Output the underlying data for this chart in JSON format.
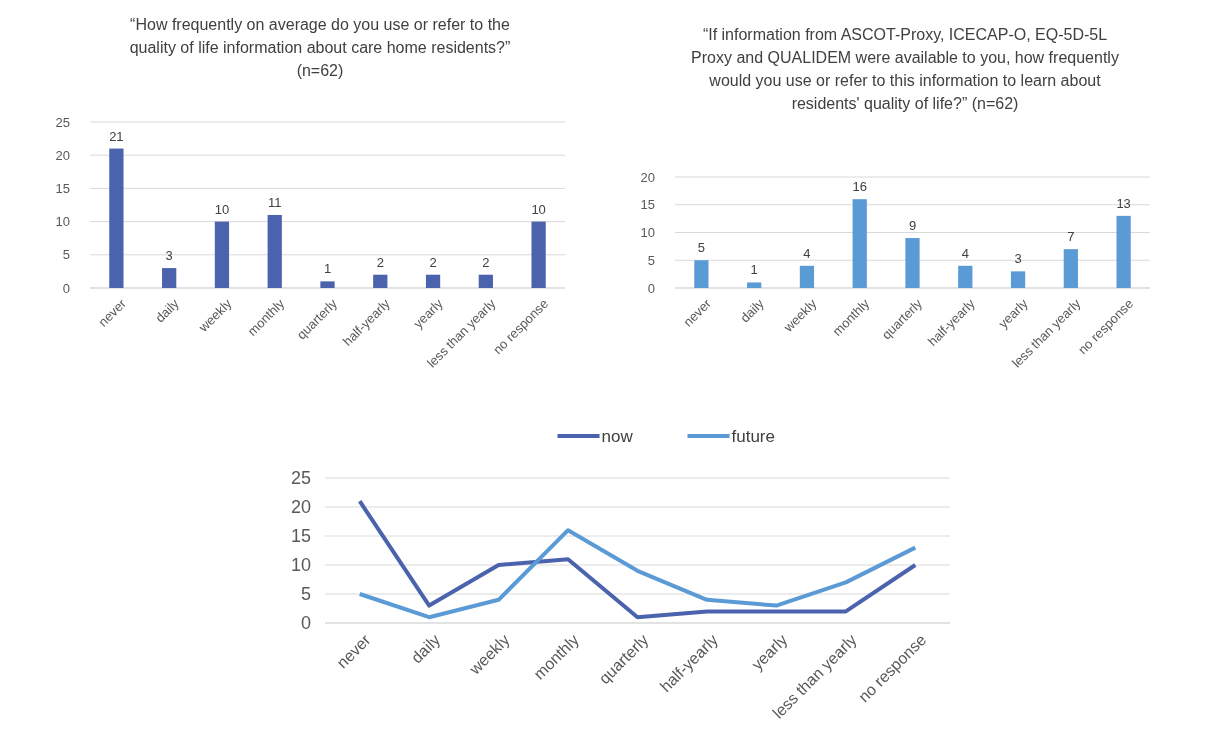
{
  "chart_data": [
    {
      "type": "bar",
      "title": "“How frequently on average do you use or refer to the quality of life information about care home residents?” (n=62)",
      "categories": [
        "never",
        "daily",
        "weekly",
        "monthly",
        "quarterly",
        "half-yearly",
        "yearly",
        "less than yearly",
        "no response"
      ],
      "values": [
        21,
        3,
        10,
        11,
        1,
        2,
        2,
        2,
        10
      ],
      "color": "#4a63ac",
      "ylim": [
        0,
        25
      ],
      "yticks": [
        0,
        5,
        10,
        15,
        20,
        25
      ],
      "grid": "y",
      "data_labels": true
    },
    {
      "type": "bar",
      "title": "“If information from ASCOT-Proxy, ICECAP-O, EQ-5D-5L Proxy and QUALIDEM were available to you, how frequently would you use or refer to this information to learn about residents' quality of life?” (n=62)",
      "categories": [
        "never",
        "daily",
        "weekly",
        "monthly",
        "quarterly",
        "half-yearly",
        "yearly",
        "less than yearly",
        "no response"
      ],
      "values": [
        5,
        1,
        4,
        16,
        9,
        4,
        3,
        7,
        13
      ],
      "color": "#5b9bd5",
      "ylim": [
        0,
        20
      ],
      "yticks": [
        0,
        5,
        10,
        15,
        20
      ],
      "grid": "y",
      "data_labels": true
    },
    {
      "type": "line",
      "categories": [
        "never",
        "daily",
        "weekly",
        "monthly",
        "quarterly",
        "half-yearly",
        "yearly",
        "less than yearly",
        "no response"
      ],
      "series": [
        {
          "name": "now",
          "color": "#4a63ac",
          "values": [
            21,
            3,
            10,
            11,
            1,
            2,
            2,
            2,
            10
          ]
        },
        {
          "name": "future",
          "color": "#5b9bd5",
          "values": [
            5,
            1,
            4,
            16,
            9,
            4,
            3,
            7,
            13
          ]
        }
      ],
      "ylim": [
        0,
        25
      ],
      "yticks": [
        0,
        5,
        10,
        15,
        20,
        25
      ],
      "grid": "y",
      "legend": "top",
      "marker": "none",
      "line_style": "solid"
    }
  ]
}
